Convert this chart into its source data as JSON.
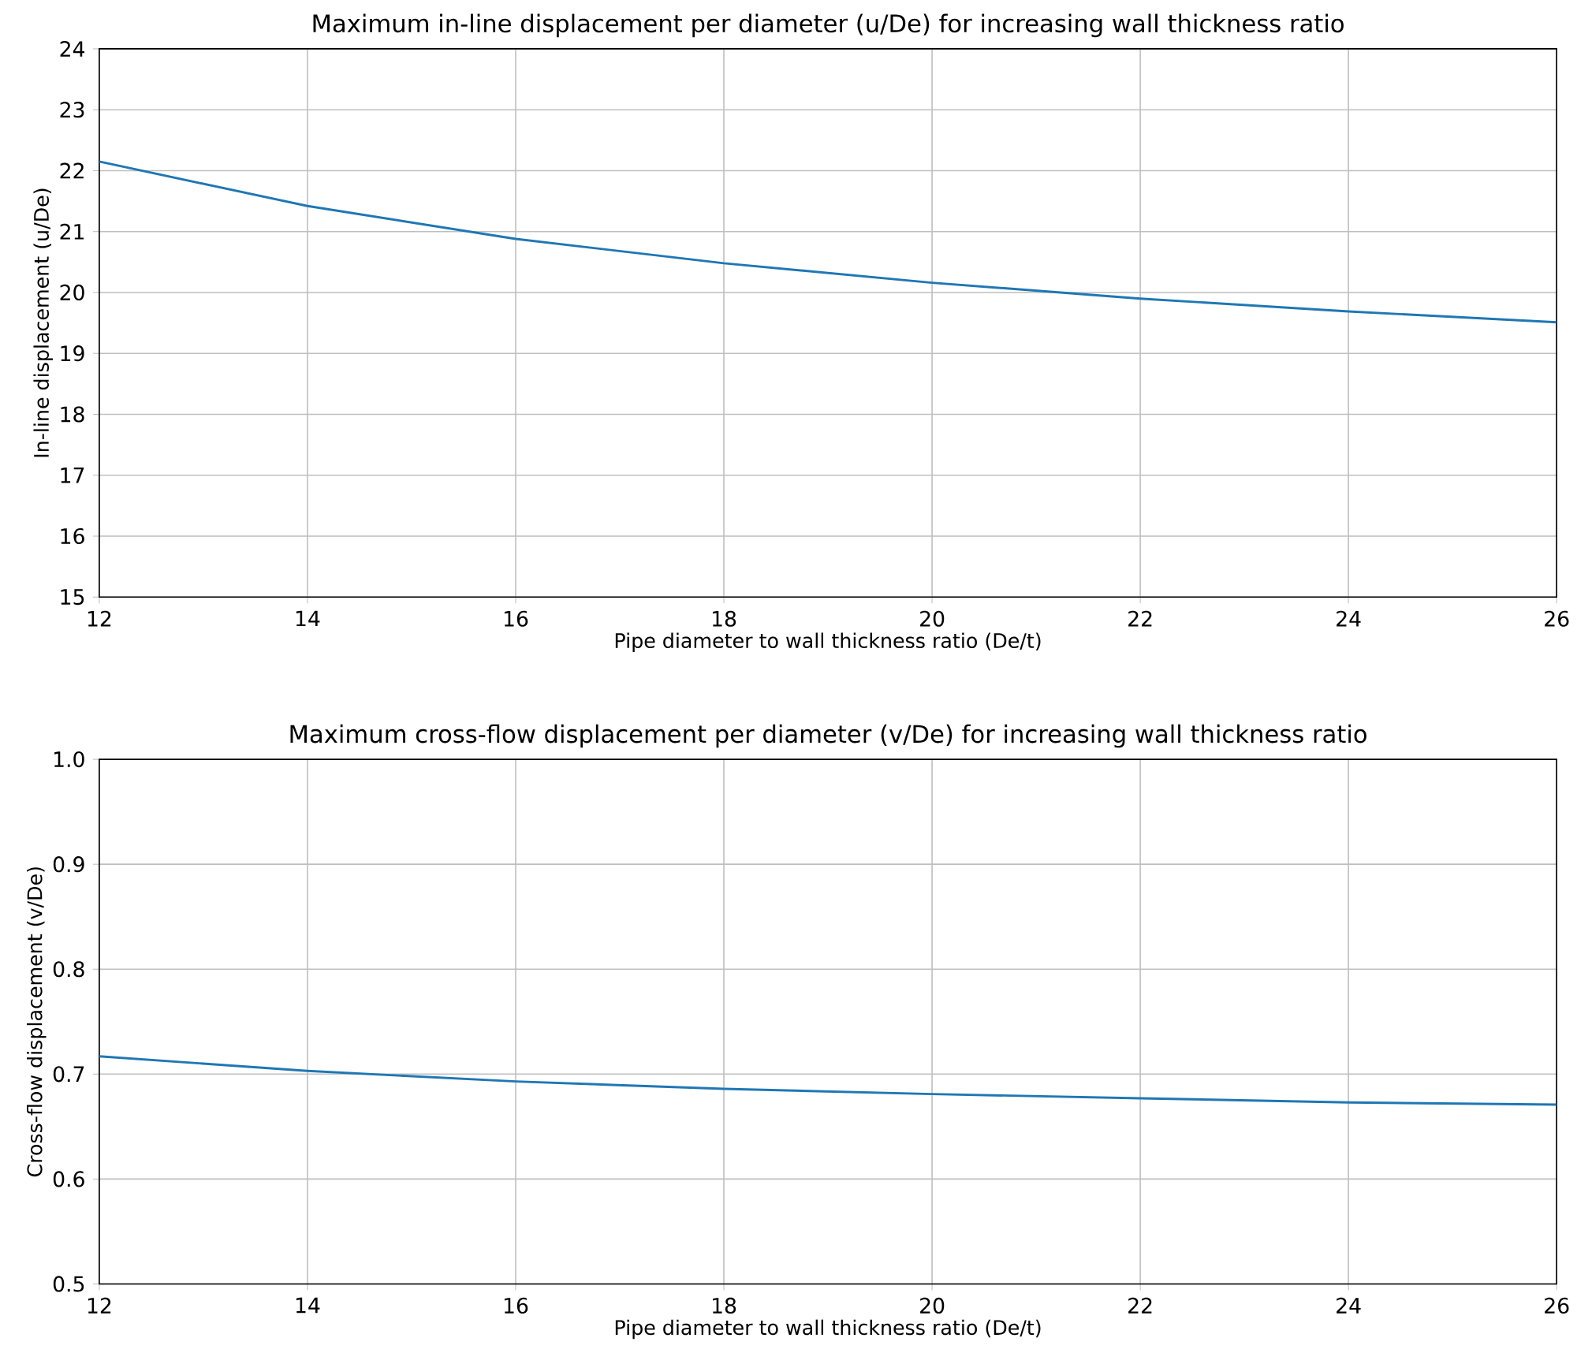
{
  "chart_data": [
    {
      "type": "line",
      "title": "Maximum in-line displacement per diameter (u/De) for increasing wall thickness ratio",
      "xlabel": "Pipe diameter to wall thickness ratio (De/t)",
      "ylabel": "In-line displacement (u/De)",
      "x": [
        12,
        14,
        16,
        18,
        20,
        22,
        24,
        26
      ],
      "values": [
        22.15,
        21.42,
        20.88,
        20.48,
        20.16,
        19.9,
        19.69,
        19.51
      ],
      "color": "#1f77b4",
      "xlim": [
        12,
        26
      ],
      "ylim": [
        15,
        24
      ],
      "xticks": [
        12,
        14,
        16,
        18,
        20,
        22,
        24,
        26
      ],
      "yticks": [
        15,
        16,
        17,
        18,
        19,
        20,
        21,
        22,
        23,
        24
      ],
      "grid": true
    },
    {
      "type": "line",
      "title": "Maximum cross-flow displacement per diameter (v/De) for increasing wall thickness ratio",
      "xlabel": "Pipe diameter to wall thickness ratio (De/t)",
      "ylabel": "Cross-flow displacement (v/De)",
      "x": [
        12,
        14,
        16,
        18,
        20,
        22,
        24,
        26
      ],
      "values": [
        0.717,
        0.703,
        0.693,
        0.686,
        0.681,
        0.677,
        0.673,
        0.671
      ],
      "color": "#1f77b4",
      "xlim": [
        12,
        26
      ],
      "ylim": [
        0.5,
        1.0
      ],
      "xticks": [
        12,
        14,
        16,
        18,
        20,
        22,
        24,
        26
      ],
      "yticks": [
        0.5,
        0.6,
        0.7,
        0.8,
        0.9,
        {
          "value": 1.0,
          "label": "1.0"
        }
      ],
      "grid": true
    }
  ]
}
